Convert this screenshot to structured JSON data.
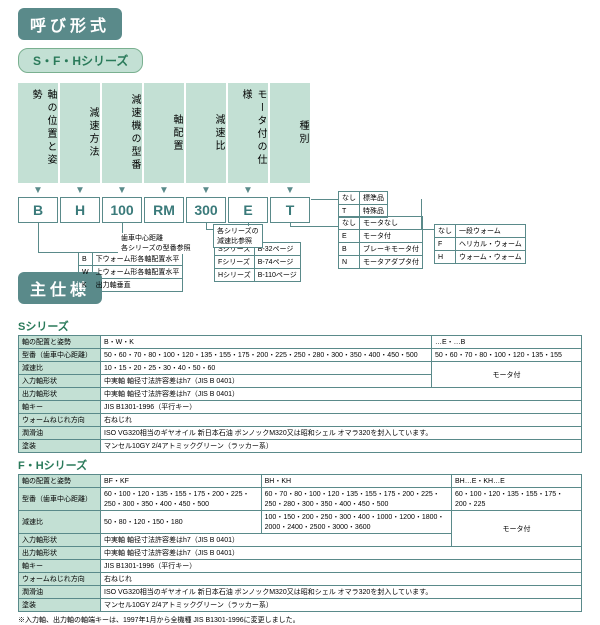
{
  "title": "呼び形式",
  "series_tag": "S・F・Hシリーズ",
  "columns": [
    {
      "label": "軸の位置と姿勢",
      "code": "B"
    },
    {
      "label": "減速方法",
      "code": "H"
    },
    {
      "label": "減速機の型番",
      "code": "100"
    },
    {
      "label": "軸配置",
      "code": "RM"
    },
    {
      "label": "減速比",
      "code": "300"
    },
    {
      "label": "モータ付の仕様",
      "code": "E"
    },
    {
      "label": "種別",
      "code": "T"
    }
  ],
  "type_table": [
    [
      "なし",
      "標準品"
    ],
    [
      "T",
      "特殊品"
    ]
  ],
  "motor_table": [
    [
      "なし",
      "モータなし"
    ],
    [
      "E",
      "モータ付"
    ],
    [
      "B",
      "ブレーキモータ付"
    ],
    [
      "N",
      "モータアダプタ付"
    ]
  ],
  "method_table": [
    [
      "なし",
      "一段ウォーム"
    ],
    [
      "F",
      "ヘリカル・ウォーム"
    ],
    [
      "H",
      "ウォーム・ウォーム"
    ]
  ],
  "ratio_note1": "各シリーズの",
  "ratio_note2": "減速比参照",
  "series_ref": [
    [
      "Sシリーズ",
      "B-32ページ"
    ],
    [
      "Fシリーズ",
      "B-74ページ"
    ],
    [
      "Hシリーズ",
      "B-110ページ"
    ]
  ],
  "model_note1": "歯車中心距離",
  "model_note2": "各シリーズの型番参照",
  "pos_table": [
    [
      "B",
      "下ウォーム形各軸配置水平"
    ],
    [
      "W",
      "上ウォーム形各軸配置水平"
    ],
    [
      "K",
      "出力軸垂直"
    ]
  ],
  "spec_title": "主仕様",
  "s_series": "Sシリーズ",
  "s_rows": [
    [
      "軸の配置と姿勢",
      "B・W・K",
      "…E・…B"
    ],
    [
      "型番（歯車中心距離）",
      "50・60・70・80・100・120・135・155・175・200・225・250・280・300・350・400・450・500",
      "50・60・70・80・100・120・135・155"
    ],
    [
      "減速比",
      "10・15・20・25・30・40・50・60",
      ""
    ],
    [
      "入力軸形状",
      "中実軸 軸径寸法許容差はh7（JIS B 0401）",
      "モータ付"
    ],
    [
      "出力軸形状",
      "中実軸 軸径寸法許容差はh7（JIS B 0401）",
      ""
    ],
    [
      "軸キー",
      "JIS B1301-1996（平行キー）",
      ""
    ],
    [
      "ウォームねじれ方向",
      "右ねじれ",
      ""
    ],
    [
      "潤滑油",
      "ISO VG320相当のギヤオイル\n新日本石油 ボンノックM320又は昭和シェル オマラ320を封入しています。",
      ""
    ],
    [
      "塗装",
      "マンセル10GY 2/4アトミックグリーン（ラッカー系）",
      ""
    ]
  ],
  "fh_series": "F・Hシリーズ",
  "fh_rows": [
    [
      "軸の配置と姿勢",
      "BF・KF",
      "BH・KH",
      "BH…E・KH…E"
    ],
    [
      "型番（歯車中心距離）",
      "60・100・120・135・155・175・200・225・250・300・350・400・450・500",
      "60・70・80・100・120・135・155・175・200・225・250・280・300・350・400・450・500",
      "60・100・120・135・155・175・200・225"
    ],
    [
      "減速比",
      "50・80・120・150・180",
      "100・150・200・250・300・400・1000・1200・1800・2000・2400・2500・3000・3600",
      "モータ付"
    ],
    [
      "入力軸形状",
      "中実軸 軸径寸法許容差はh7（JIS B 0401）",
      "",
      ""
    ],
    [
      "出力軸形状",
      "中実軸 軸径寸法許容差はh7（JIS B 0401）",
      "",
      ""
    ],
    [
      "軸キー",
      "JIS B1301-1996（平行キー）",
      "",
      ""
    ],
    [
      "ウォームねじれ方向",
      "右ねじれ",
      "",
      ""
    ],
    [
      "潤滑油",
      "ISO VG320相当のギヤオイル\n新日本石油 ボンノックM320又は昭和シェル オマラ320を封入しています。",
      "",
      ""
    ],
    [
      "塗装",
      "マンセル10GY 2/4アトミックグリーン（ラッカー系）",
      "",
      ""
    ]
  ],
  "footnote": "※入力軸、出力軸の軸端キーは、1997年1月から全機種 JIS B1301-1996に変更しました。"
}
